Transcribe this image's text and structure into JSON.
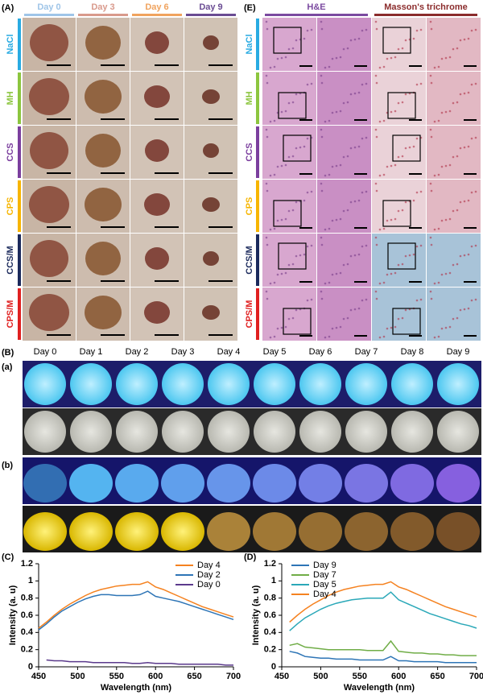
{
  "panel_a": {
    "label": "(A)",
    "columns": [
      "Day 0",
      "Day 3",
      "Day 6",
      "Day 9"
    ],
    "column_colors": [
      "#9fc5e8",
      "#d99a8c",
      "#f0a35e",
      "#6a4c93"
    ],
    "rows": [
      "NaCl",
      "MH",
      "CCS",
      "CPS",
      "CCS/M",
      "CPS/M"
    ],
    "row_colors": [
      "#29abe2",
      "#8cc63f",
      "#7b3f9e",
      "#f7b500",
      "#1b2a5c",
      "#e02020"
    ]
  },
  "panel_e": {
    "label": "(E)",
    "columns": [
      "H&E",
      "Masson's trichrome"
    ],
    "column_colors": [
      "#7b4aa0",
      "#8b2c2c"
    ],
    "rows": [
      "NaCl",
      "MH",
      "CCS",
      "CPS",
      "CCS/M",
      "CPS/M"
    ],
    "row_colors": [
      "#29abe2",
      "#8cc63f",
      "#7b3f9e",
      "#f7b500",
      "#1b2a5c",
      "#e02020"
    ]
  },
  "panel_b": {
    "label": "(B)",
    "columns": [
      "Day 0",
      "Day 1",
      "Day 2",
      "Day 3",
      "Day 4",
      "Day 5",
      "Day 6",
      "Day 7",
      "Day 8",
      "Day 9"
    ],
    "sublabels": [
      "(a)",
      "(b)"
    ]
  },
  "chart_data": [
    {
      "type": "line",
      "label": "(C)",
      "xlabel": "Wavelength (nm)",
      "ylabel": "Intensity (a. u)",
      "x": [
        450,
        460,
        470,
        480,
        490,
        500,
        510,
        520,
        530,
        540,
        550,
        560,
        570,
        580,
        590,
        600,
        610,
        620,
        630,
        640,
        650,
        660,
        670,
        680,
        690,
        700
      ],
      "xlim": [
        450,
        700
      ],
      "xticks": [
        450,
        500,
        550,
        600,
        650,
        700
      ],
      "ylim": [
        0,
        1.2
      ],
      "yticks": [
        0,
        0.2,
        0.4,
        0.6,
        0.8,
        1,
        1.2
      ],
      "legend": "upper right",
      "series": [
        {
          "name": "Day 4",
          "color": "#f58220",
          "values": [
            0.45,
            0.52,
            0.6,
            0.67,
            0.73,
            0.78,
            0.83,
            0.87,
            0.9,
            0.92,
            0.94,
            0.95,
            0.96,
            0.96,
            0.99,
            0.93,
            0.9,
            0.86,
            0.82,
            0.78,
            0.74,
            0.7,
            0.67,
            0.64,
            0.61,
            0.58
          ]
        },
        {
          "name": "Day 2",
          "color": "#2e75b6",
          "values": [
            0.43,
            0.5,
            0.58,
            0.65,
            0.7,
            0.75,
            0.79,
            0.82,
            0.84,
            0.84,
            0.83,
            0.83,
            0.83,
            0.84,
            0.88,
            0.82,
            0.8,
            0.78,
            0.76,
            0.73,
            0.7,
            0.67,
            0.64,
            0.61,
            0.58,
            0.55
          ]
        },
        {
          "name": "Day 0",
          "color": "#5b3a8c",
          "values": [
            null,
            0.08,
            0.07,
            0.07,
            0.06,
            0.06,
            0.06,
            0.05,
            0.05,
            0.05,
            0.05,
            0.05,
            0.04,
            0.04,
            0.05,
            0.04,
            0.04,
            0.04,
            0.03,
            0.03,
            0.03,
            0.03,
            0.03,
            0.03,
            0.02,
            0.02
          ]
        }
      ]
    },
    {
      "type": "line",
      "label": "(D)",
      "xlabel": "Wavelength (nm)",
      "ylabel": "Intensity (a. u)",
      "x": [
        460,
        470,
        480,
        490,
        500,
        510,
        520,
        530,
        540,
        550,
        560,
        570,
        580,
        590,
        600,
        610,
        620,
        630,
        640,
        650,
        660,
        670,
        680,
        690,
        700
      ],
      "xlim": [
        450,
        700
      ],
      "xticks": [
        450,
        500,
        550,
        600,
        650,
        700
      ],
      "ylim": [
        0,
        1.2
      ],
      "yticks": [
        0,
        0.2,
        0.4,
        0.6,
        0.8,
        1,
        1.2
      ],
      "legend": "upper left",
      "series": [
        {
          "name": "Day 9",
          "color": "#2e75b6",
          "values": [
            0.18,
            0.16,
            0.12,
            0.11,
            0.1,
            0.1,
            0.09,
            0.09,
            0.09,
            0.08,
            0.08,
            0.08,
            0.08,
            0.12,
            0.07,
            0.07,
            0.06,
            0.06,
            0.06,
            0.06,
            0.05,
            0.05,
            0.05,
            0.05,
            0.05
          ]
        },
        {
          "name": "Day 7",
          "color": "#70ad47",
          "values": [
            0.25,
            0.27,
            0.23,
            0.22,
            0.21,
            0.2,
            0.2,
            0.2,
            0.2,
            0.2,
            0.19,
            0.19,
            0.19,
            0.3,
            0.18,
            0.17,
            0.16,
            0.16,
            0.15,
            0.15,
            0.14,
            0.14,
            0.13,
            0.13,
            0.13
          ]
        },
        {
          "name": "Day 5",
          "color": "#2aa8b8",
          "values": [
            0.42,
            0.5,
            0.57,
            0.62,
            0.67,
            0.71,
            0.74,
            0.76,
            0.78,
            0.79,
            0.8,
            0.8,
            0.8,
            0.87,
            0.78,
            0.74,
            0.7,
            0.66,
            0.62,
            0.59,
            0.56,
            0.53,
            0.5,
            0.48,
            0.45
          ]
        },
        {
          "name": "Day 4",
          "color": "#f58220",
          "values": [
            0.52,
            0.6,
            0.67,
            0.73,
            0.78,
            0.83,
            0.87,
            0.9,
            0.92,
            0.94,
            0.95,
            0.96,
            0.96,
            0.99,
            0.93,
            0.9,
            0.86,
            0.82,
            0.78,
            0.74,
            0.7,
            0.67,
            0.64,
            0.61,
            0.58
          ]
        }
      ]
    }
  ]
}
